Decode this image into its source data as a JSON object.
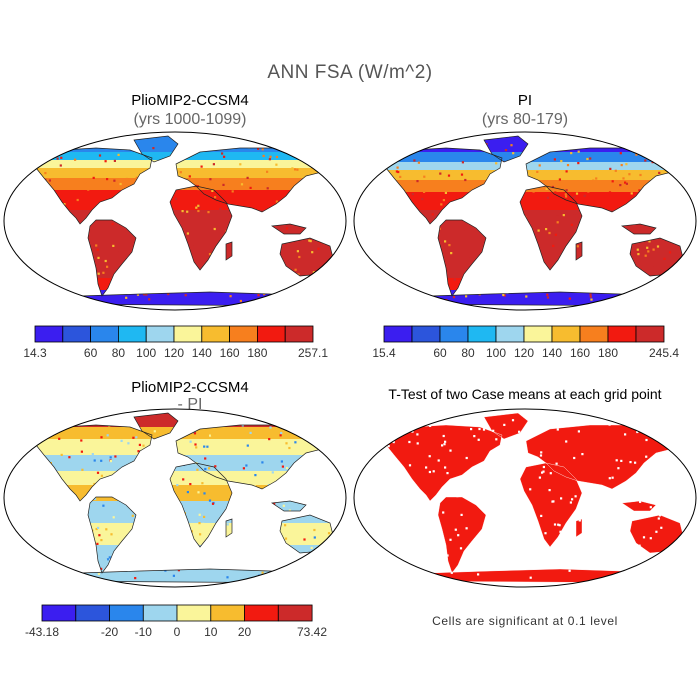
{
  "figure": {
    "title": "ANN FSA (W/m^2)"
  },
  "panels": [
    {
      "title": "PlioMIP2-CCSM4",
      "subtitle": "(yrs 1000-1099)",
      "colorbar": {
        "colors": [
          "#3b1ef0",
          "#2c55dc",
          "#2a86ec",
          "#1fb8f2",
          "#9ed6ee",
          "#faf59a",
          "#f7bc2f",
          "#f77f1e",
          "#f21a10",
          "#cc2a2a"
        ],
        "labels": [
          "14.3",
          "60",
          "80",
          "100",
          "120",
          "140",
          "160",
          "180",
          "257.1"
        ]
      }
    },
    {
      "title": "PI",
      "subtitle": "(yrs 80-179)",
      "colorbar": {
        "colors": [
          "#3b1ef0",
          "#2c55dc",
          "#2a86ec",
          "#1fb8f2",
          "#9ed6ee",
          "#faf59a",
          "#f7bc2f",
          "#f77f1e",
          "#f21a10",
          "#cc2a2a"
        ],
        "labels": [
          "15.4",
          "60",
          "80",
          "100",
          "120",
          "140",
          "160",
          "180",
          "245.4"
        ]
      }
    },
    {
      "title": "PlioMIP2-CCSM4",
      "subtitle": "- PI",
      "colorbar": {
        "colors": [
          "#3b1ef0",
          "#2c55dc",
          "#2a86ec",
          "#9ed6ee",
          "#faf59a",
          "#f7bc2f",
          "#f21a10",
          "#cc2a2a"
        ],
        "labels": [
          "-43.18",
          "-20",
          "-10",
          "0",
          "10",
          "20",
          "73.42"
        ]
      }
    },
    {
      "title": "T-Test of two Case means at each grid point",
      "note": "Cells are significant at 0.1 level"
    }
  ]
}
